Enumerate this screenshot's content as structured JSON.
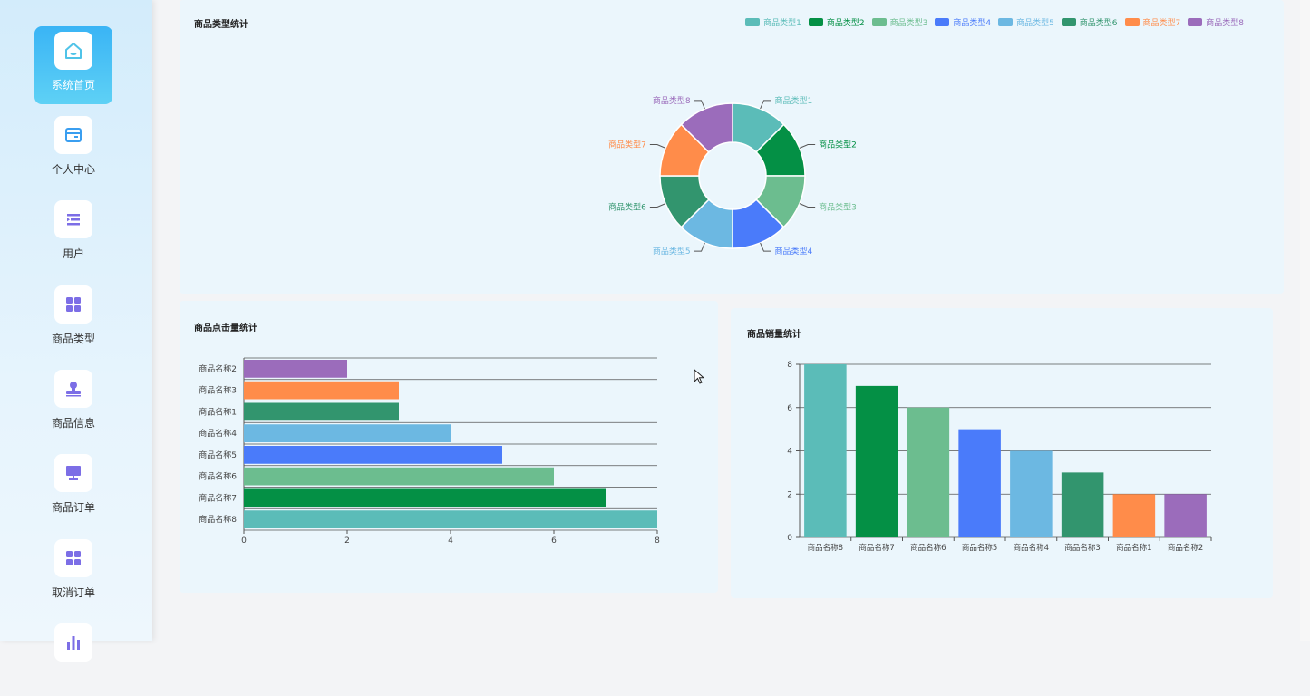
{
  "sidebar": {
    "items": [
      {
        "label": "系统首页",
        "icon": "home-icon"
      },
      {
        "label": "个人中心",
        "icon": "wallet-icon"
      },
      {
        "label": "用户",
        "icon": "list-icon"
      },
      {
        "label": "商品类型",
        "icon": "grid-icon"
      },
      {
        "label": "商品信息",
        "icon": "stamp-icon"
      },
      {
        "label": "商品订单",
        "icon": "monitor-icon"
      },
      {
        "label": "取消订单",
        "icon": "grid-icon"
      }
    ]
  },
  "colors": [
    "#5bbcb8",
    "#049045",
    "#6cbd8f",
    "#4a7bfa",
    "#6cb8e2",
    "#32956e",
    "#ff8c4a",
    "#9b6cbb"
  ],
  "chart_data": [
    {
      "type": "pie",
      "variant": "donut",
      "title": "商品类型统计",
      "legend_position": "top-right",
      "categories": [
        "商品类型1",
        "商品类型2",
        "商品类型3",
        "商品类型4",
        "商品类型5",
        "商品类型6",
        "商品类型7",
        "商品类型8"
      ],
      "values": [
        1,
        1,
        1,
        1,
        1,
        1,
        1,
        1
      ]
    },
    {
      "type": "bar",
      "orientation": "horizontal",
      "title": "商品点击量统计",
      "categories": [
        "商品名称2",
        "商品名称3",
        "商品名称1",
        "商品名称4",
        "商品名称5",
        "商品名称6",
        "商品名称7",
        "商品名称8"
      ],
      "values": [
        2,
        3,
        3,
        4,
        5,
        6,
        7,
        8
      ],
      "xlim": [
        0,
        8
      ],
      "ticks": [
        0,
        2,
        4,
        6,
        8
      ]
    },
    {
      "type": "bar",
      "orientation": "vertical",
      "title": "商品销量统计",
      "categories": [
        "商品名称8",
        "商品名称7",
        "商品名称6",
        "商品名称5",
        "商品名称4",
        "商品名称3",
        "商品名称1",
        "商品名称2"
      ],
      "values": [
        8,
        7,
        6,
        5,
        4,
        3,
        2,
        2
      ],
      "ylim": [
        0,
        8
      ],
      "ticks": [
        0,
        2,
        4,
        6,
        8
      ]
    }
  ]
}
